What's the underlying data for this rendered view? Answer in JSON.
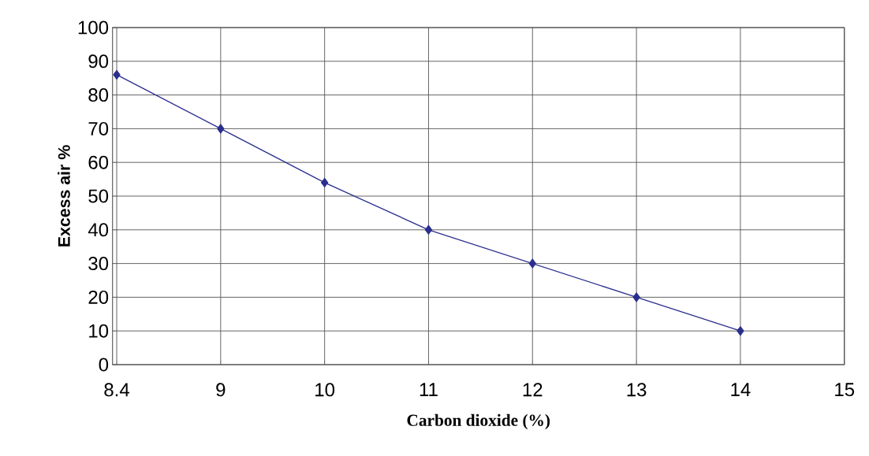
{
  "chart_data": {
    "type": "line",
    "xlabel": "Carbon dioxide (%)",
    "ylabel": "Excess air %",
    "categories": [
      "8.4",
      "9",
      "10",
      "11",
      "12",
      "13",
      "14",
      "15"
    ],
    "series": [
      {
        "color": "#2b2e8f",
        "values": [
          86,
          70,
          54,
          40,
          30,
          20,
          10,
          null
        ]
      }
    ],
    "ylim": [
      0,
      100
    ],
    "yticks": [
      0,
      10,
      20,
      30,
      40,
      50,
      60,
      70,
      80,
      90,
      100
    ],
    "grid": true,
    "marker": "diamond",
    "line_style": "solid"
  }
}
